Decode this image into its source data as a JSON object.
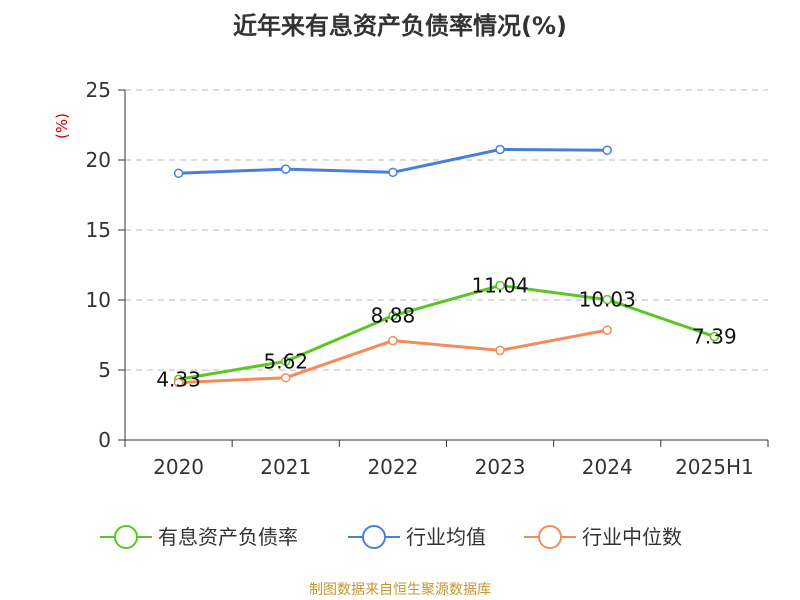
{
  "chart_data": {
    "type": "line",
    "title": "近年来有息资产负债率情况(%)",
    "unit": "(%)",
    "categories": [
      "2020",
      "2021",
      "2022",
      "2023",
      "2024",
      "2025H1"
    ],
    "ylim": [
      0,
      25
    ],
    "yticks": [
      "0",
      "5",
      "10",
      "15",
      "20",
      "25"
    ],
    "grid": true,
    "legend_position": "bottom",
    "series": [
      {
        "name": "有息资产负债率",
        "color": "#5ac625",
        "values": [
          4.33,
          5.62,
          8.88,
          11.04,
          10.03,
          7.39
        ],
        "labels": [
          "4.33",
          "5.62",
          "8.88",
          "11.04",
          "10.03",
          "7.39"
        ]
      },
      {
        "name": "行业均值",
        "color": "#4a7fd9",
        "values": [
          19.05,
          19.35,
          19.12,
          20.75,
          20.7,
          null
        ]
      },
      {
        "name": "行业中位数",
        "color": "#f48c5a",
        "values": [
          4.1,
          4.45,
          7.1,
          6.4,
          7.85,
          null
        ]
      }
    ],
    "unit_color": "#cc0000",
    "source": "制图数据来自恒生聚源数据库",
    "source_color": "#c9962a"
  }
}
